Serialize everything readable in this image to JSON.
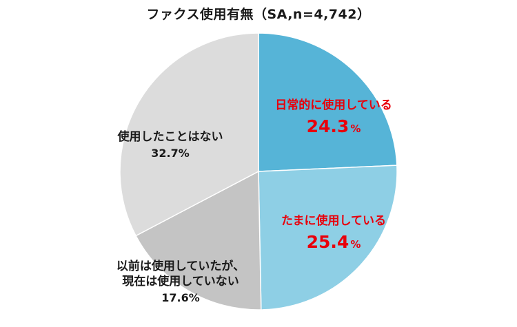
{
  "chart_data": {
    "type": "pie",
    "title": "ファクス使用有無（SA,n=4,742）",
    "unit": "%",
    "start": "12 o'clock",
    "direction": "clockwise",
    "slices": [
      {
        "label": "日常的に使用している",
        "value": 24.3,
        "value_text": "24.3",
        "color": "#56b4d7",
        "label_color": "#e8000b",
        "emphasis": true
      },
      {
        "label": "たまに使用している",
        "value": 25.4,
        "value_text": "25.4",
        "color": "#8ecfe5",
        "label_color": "#e8000b",
        "emphasis": true
      },
      {
        "label": "以前は使用していたが、\n現在は使用していない",
        "value": 17.6,
        "value_text": "17.6%",
        "color": "#c4c4c4",
        "label_color": "#1a1a1a",
        "emphasis": false
      },
      {
        "label": "使用したことはない",
        "value": 32.7,
        "value_text": "32.7%",
        "color": "#dcdcdc",
        "label_color": "#1a1a1a",
        "emphasis": false
      }
    ]
  }
}
